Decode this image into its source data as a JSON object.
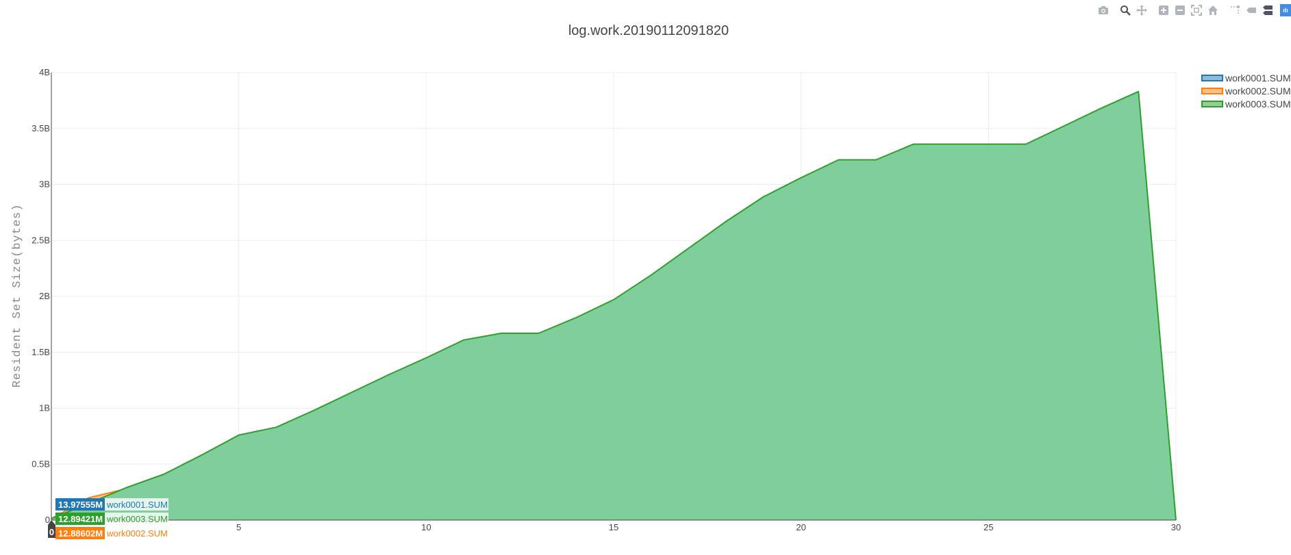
{
  "modebar": {
    "icons": [
      "camera-icon",
      "zoom-icon",
      "pan-icon",
      "zoom-in-icon",
      "zoom-out-icon",
      "autoscale-icon",
      "reset-axes-icon",
      "toggle-spike-lines-icon",
      "hover-closest-icon",
      "hover-compare-icon",
      "plotly-logo-icon"
    ]
  },
  "colors": {
    "work0001": "#1f77b4",
    "work0002": "#ff7f0e",
    "work0003": "#2ca02c",
    "work0003_fill": "#7fce9b",
    "grid": "#eeeeee",
    "axis": "#444444"
  },
  "chart_data": {
    "type": "area",
    "title": "log.work.20190112091820",
    "xlabel": "",
    "ylabel": "Resident Set Size(bytes)",
    "xlim": [
      0,
      30
    ],
    "ylim": [
      0,
      4000000000
    ],
    "xticks": [
      5,
      10,
      15,
      20,
      25,
      30
    ],
    "xtick_labels": [
      "5",
      "10",
      "15",
      "20",
      "25",
      "30"
    ],
    "yticks": [
      0,
      500000000,
      1000000000,
      1500000000,
      2000000000,
      2500000000,
      3000000000,
      3500000000,
      4000000000
    ],
    "ytick_labels": [
      "0",
      "0.5B",
      "1B",
      "1.5B",
      "2B",
      "2.5B",
      "3B",
      "3.5B",
      "4B"
    ],
    "grid": true,
    "legend_position": "top-right",
    "series": [
      {
        "name": "work0001.SUM",
        "x": [
          0,
          1,
          2
        ],
        "y": [
          13975550,
          150000000,
          200000000
        ]
      },
      {
        "name": "work0002.SUM",
        "x": [
          0,
          1,
          2
        ],
        "y": [
          12886020,
          200000000,
          280000000
        ]
      },
      {
        "name": "work0003.SUM",
        "x": [
          0,
          1,
          2,
          3,
          4,
          5,
          6,
          7,
          8,
          9,
          10,
          11,
          12,
          13,
          14,
          15,
          16,
          17,
          18,
          19,
          20,
          21,
          22,
          23,
          24,
          25,
          26,
          27,
          28,
          29,
          30
        ],
        "y": [
          12894210,
          150000000,
          290000000,
          410000000,
          580000000,
          760000000,
          830000000,
          980000000,
          1140000000,
          1300000000,
          1450000000,
          1610000000,
          1670000000,
          1670000000,
          1810000000,
          1970000000,
          2190000000,
          2430000000,
          2670000000,
          2890000000,
          3060000000,
          3220000000,
          3220000000,
          3360000000,
          3360000000,
          3360000000,
          3360000000,
          3520000000,
          3680000000,
          3830000000,
          0
        ]
      }
    ],
    "hover": {
      "x_label": "0",
      "items": [
        {
          "value": "13.97555M",
          "name": "work0001.SUM"
        },
        {
          "value": "12.89421M",
          "name": "work0003.SUM"
        },
        {
          "value": "12.88602M",
          "name": "work0002.SUM"
        }
      ]
    }
  }
}
